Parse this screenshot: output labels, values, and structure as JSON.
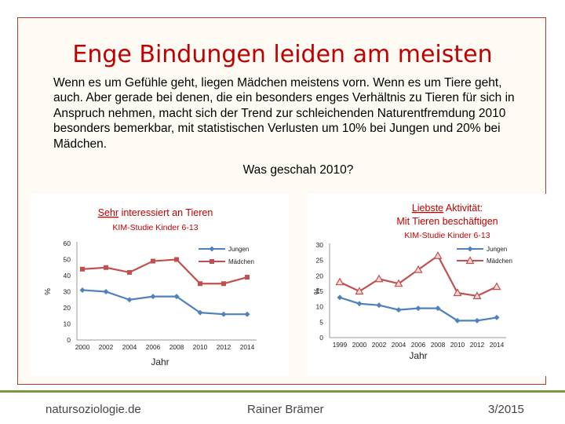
{
  "slide": {
    "title": "Enge Bindungen leiden am meisten",
    "paragraph": "Wenn es um Gefühle geht, liegen Mädchen meistens vorn. Wenn es um Tiere geht, auch. Aber gerade bei denen, die ein besonders enges Verhältnis zu Tieren für sich in Anspruch nehmen, macht sich der Trend zur schleichenden Naturentfremdung 2010 besonders bemerkbar, mit statistischen Verlusten um 10% bei Jungen und 20% bei Mädchen.",
    "question": "Was geschah 2010?"
  },
  "footer": {
    "left": "natursoziologie.de",
    "center": "Rainer Brämer",
    "right": "3/2015"
  },
  "colors": {
    "accent": "#c00000",
    "jungen": "#4f81bd",
    "maedchen": "#c0504d",
    "footer_line": "#7a9a3a"
  },
  "chart_data": [
    {
      "type": "line",
      "title_underlined": "Sehr",
      "title_rest": " interessiert an Tieren",
      "subtitle": "KIM-Studie Kinder 6-13",
      "xlabel": "Jahr",
      "ylabel": "%",
      "x": [
        "2000",
        "2002",
        "2004",
        "2006",
        "2008",
        "2010",
        "2012",
        "2014"
      ],
      "ylim": [
        0,
        60
      ],
      "yticks": [
        0,
        10,
        20,
        30,
        40,
        50,
        60
      ],
      "legend_position": "top-right",
      "series": [
        {
          "name": "Jungen",
          "marker": "diamond",
          "color": "#4f81bd",
          "values": [
            31,
            30,
            25,
            27,
            27,
            17,
            16,
            16
          ]
        },
        {
          "name": "Mädchen",
          "marker": "square",
          "color": "#c0504d",
          "values": [
            44,
            45,
            42,
            49,
            50,
            35,
            35,
            39
          ]
        }
      ]
    },
    {
      "type": "line",
      "title_underlined": "Liebste",
      "title_rest": " Aktivität:",
      "title_line2": "Mit Tieren beschäftigen",
      "subtitle": "KIM-Studie Kinder 6-13",
      "xlabel": "Jahr",
      "ylabel": "%",
      "x": [
        "1999",
        "2000",
        "2002",
        "2004",
        "2006",
        "2008",
        "2010",
        "2012",
        "2014"
      ],
      "ylim": [
        0,
        30
      ],
      "yticks": [
        0,
        5,
        10,
        15,
        20,
        25,
        30
      ],
      "legend_position": "top-right",
      "series": [
        {
          "name": "Jungen",
          "marker": "diamond",
          "color": "#4f81bd",
          "values": [
            13,
            11,
            10.5,
            9,
            9.5,
            9.5,
            5.5,
            5.5,
            6.5
          ]
        },
        {
          "name": "Mädchen",
          "marker": "triangle",
          "color": "#c0504d",
          "values": [
            18,
            15,
            19,
            17.5,
            22,
            26.5,
            14.5,
            13.5,
            16.5
          ]
        }
      ]
    }
  ]
}
